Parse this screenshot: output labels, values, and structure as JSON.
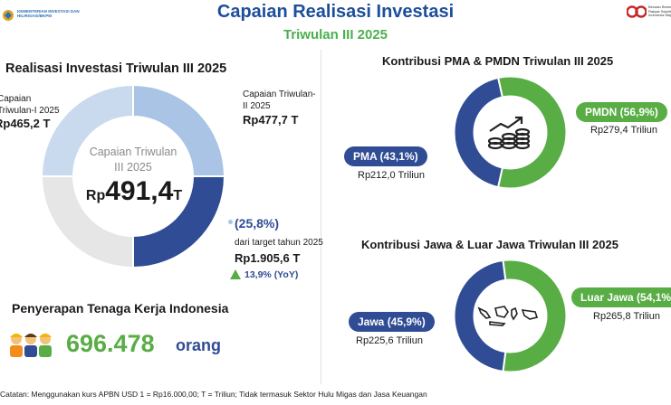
{
  "header": {
    "title": "Capaian Realisasi Investasi",
    "subtitle": "Triwulan III 2025",
    "logo_left_text": "KEMENTERIAN INVESTASI DAN HILIRISASI/BKPM",
    "logo_right_text": "Bersatu Berdaulat Rakyat Sejahtera Indonesia Maju"
  },
  "colors": {
    "navy": "#2f4c94",
    "light_blue": "#a9c4e4",
    "pale_blue": "#c9d9ee",
    "light_gray": "#e6e6e6",
    "green": "#58ad45",
    "title_blue": "#1d4e9b"
  },
  "realisasi": {
    "section_title": "Realisasi Investasi Triwulan III 2025",
    "center_label": "Capaian Triwulan III 2025",
    "center_prefix": "Rp",
    "center_value": "491,4",
    "center_suffix": "T",
    "q1_label": "Capaian Triwulan-I 2025",
    "q1_value": "Rp465,2 T",
    "q2_label": "Capaian Triwulan-II 2025",
    "q2_value": "Rp477,7 T",
    "pct": "(25,8%)",
    "target_label": "dari target tahun 2025",
    "target_value": "Rp1.905,6 T",
    "yoy": "13,9% (YoY)"
  },
  "tenaga_kerja": {
    "title": "Penyerapan Tenaga Kerja Indonesia",
    "value": "696.478",
    "unit": "orang",
    "icon": "workers-icon"
  },
  "pma_pmdn": {
    "title": "Kontribusi PMA & PMDN Triwulan III 2025",
    "pma_label": "PMA (43,1%)",
    "pma_value": "Rp212,0 Triliun",
    "pmdn_label": "PMDN (56,9%)",
    "pmdn_value": "Rp279,4 Triliun",
    "icon": "growth-coins-icon"
  },
  "jawa": {
    "title": "Kontribusi Jawa & Luar Jawa Triwulan III 2025",
    "jawa_label": "Jawa (45,9%)",
    "jawa_value": "Rp225,6 Triliun",
    "luar_label": "Luar Jawa (54,1%)",
    "luar_value": "Rp265,8 Triliun",
    "icon": "indonesia-map-icon"
  },
  "footnote": "Catatan: Menggunakan kurs APBN USD 1 = Rp16.000,00; T = Triliun;  Tidak termasuk Sektor Hulu Migas dan Jasa Keuangan",
  "chart_data": [
    {
      "type": "pie",
      "title": "Realisasi Investasi Triwulan III 2025",
      "unit": "Rp Triliun",
      "categories": [
        "Triwulan-I 2025",
        "Triwulan-II 2025",
        "Triwulan III 2025"
      ],
      "values": [
        465.2,
        477.7,
        491.4
      ]
    },
    {
      "type": "pie",
      "title": "Kontribusi PMA & PMDN Triwulan III 2025",
      "categories": [
        "PMA",
        "PMDN"
      ],
      "values": [
        43.1,
        56.9
      ],
      "amounts": [
        212.0,
        279.4
      ],
      "amount_unit": "Rp Triliun"
    },
    {
      "type": "pie",
      "title": "Kontribusi Jawa & Luar Jawa Triwulan III 2025",
      "categories": [
        "Jawa",
        "Luar Jawa"
      ],
      "values": [
        45.9,
        54.1
      ],
      "amounts": [
        225.6,
        265.8
      ],
      "amount_unit": "Rp Triliun"
    }
  ]
}
